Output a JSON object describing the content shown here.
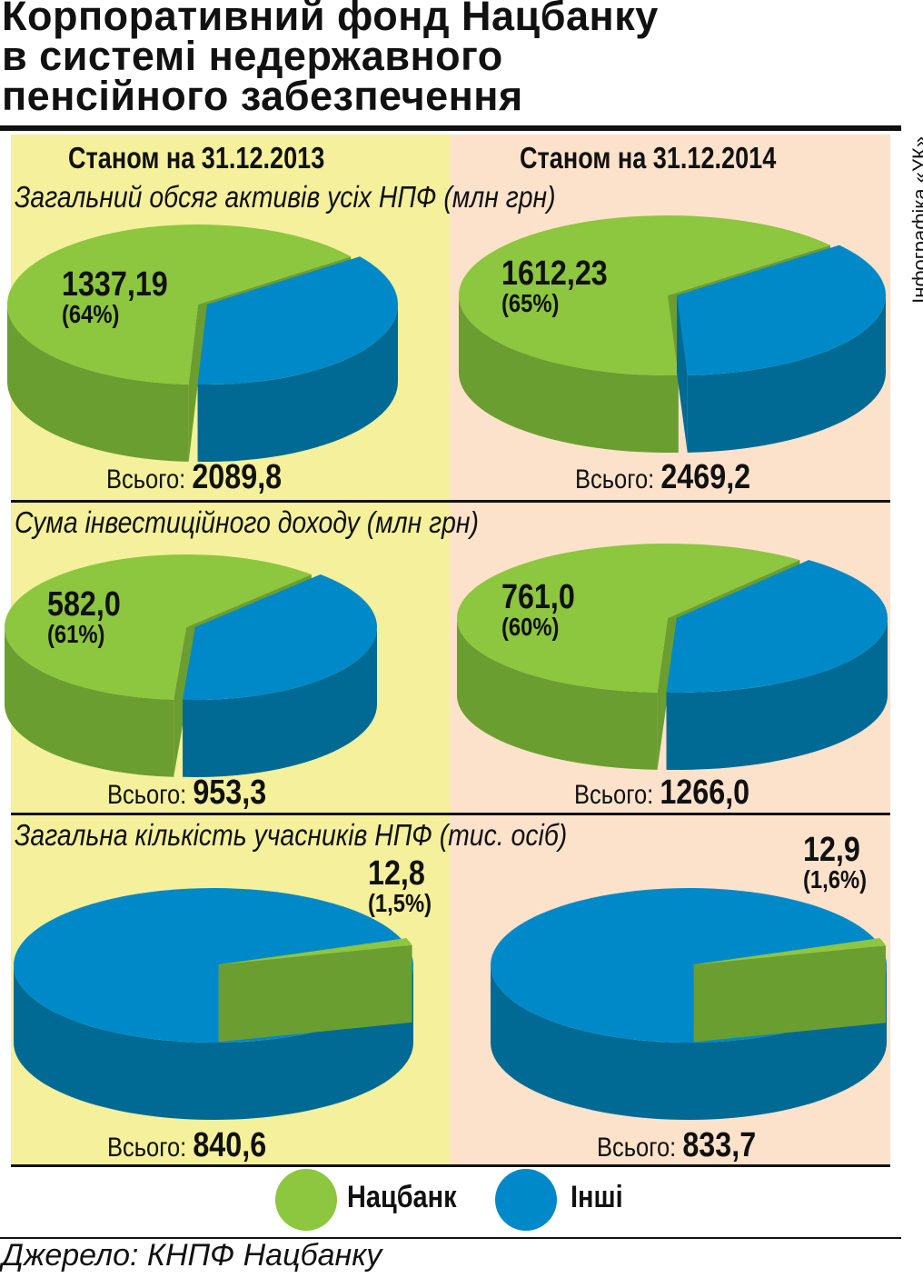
{
  "title": [
    "Корпоративний фонд Нацбанку",
    "в системі недержавного",
    "пенсійного забезпечення"
  ],
  "credit": "Інфографіка «УК»",
  "columns": [
    "Станом на 31.12.2013",
    "Станом на 31.12.2014"
  ],
  "sections": [
    "Загальний обсяг активів усіх НПФ (млн грн)",
    "Сума інвестиційного доходу (млн грн)",
    "Загальна кількість учасників НПФ (тис. осіб)"
  ],
  "total_label": "Всього:",
  "legend": [
    {
      "label": "Нацбанк",
      "color": "#8dc63f"
    },
    {
      "label": "Інші",
      "color": "#0089c8"
    }
  ],
  "source": "Джерело: КНПФ Нацбанку",
  "colors": {
    "green_top": "#8dc63f",
    "green_side": "#6b9e31",
    "blue_top": "#0089c8",
    "blue_side": "#006a94",
    "panel_left": "#f4f09b",
    "panel_right": "#fde2cb"
  },
  "chart_data": [
    {
      "type": "pie",
      "section": "Загальний обсяг активів усіх НПФ (млн грн)",
      "date": "31.12.2013",
      "natsbank_value": "1337,19",
      "natsbank_pct": "(64%)",
      "fraction": 0.64,
      "total": "2089,8"
    },
    {
      "type": "pie",
      "section": "Загальний обсяг активів усіх НПФ (млн грн)",
      "date": "31.12.2014",
      "natsbank_value": "1612,23",
      "natsbank_pct": "(65%)",
      "fraction": 0.65,
      "total": "2469,2"
    },
    {
      "type": "pie",
      "section": "Сума інвестиційного доходу (млн грн)",
      "date": "31.12.2013",
      "natsbank_value": "582,0",
      "natsbank_pct": "(61%)",
      "fraction": 0.61,
      "total": "953,3"
    },
    {
      "type": "pie",
      "section": "Сума інвестиційного доходу (млн грн)",
      "date": "31.12.2014",
      "natsbank_value": "761,0",
      "natsbank_pct": "(60%)",
      "fraction": 0.6,
      "total": "1266,0"
    },
    {
      "type": "pie",
      "section": "Загальна кількість учасників НПФ (тис. осіб)",
      "date": "31.12.2013",
      "natsbank_value": "12,8",
      "natsbank_pct": "(1,5%)",
      "fraction": 0.015,
      "total": "840,6"
    },
    {
      "type": "pie",
      "section": "Загальна кількість учасників НПФ (тис. осіб)",
      "date": "31.12.2014",
      "natsbank_value": "12,9",
      "natsbank_pct": "(1,6%)",
      "fraction": 0.016,
      "total": "833,7"
    }
  ]
}
